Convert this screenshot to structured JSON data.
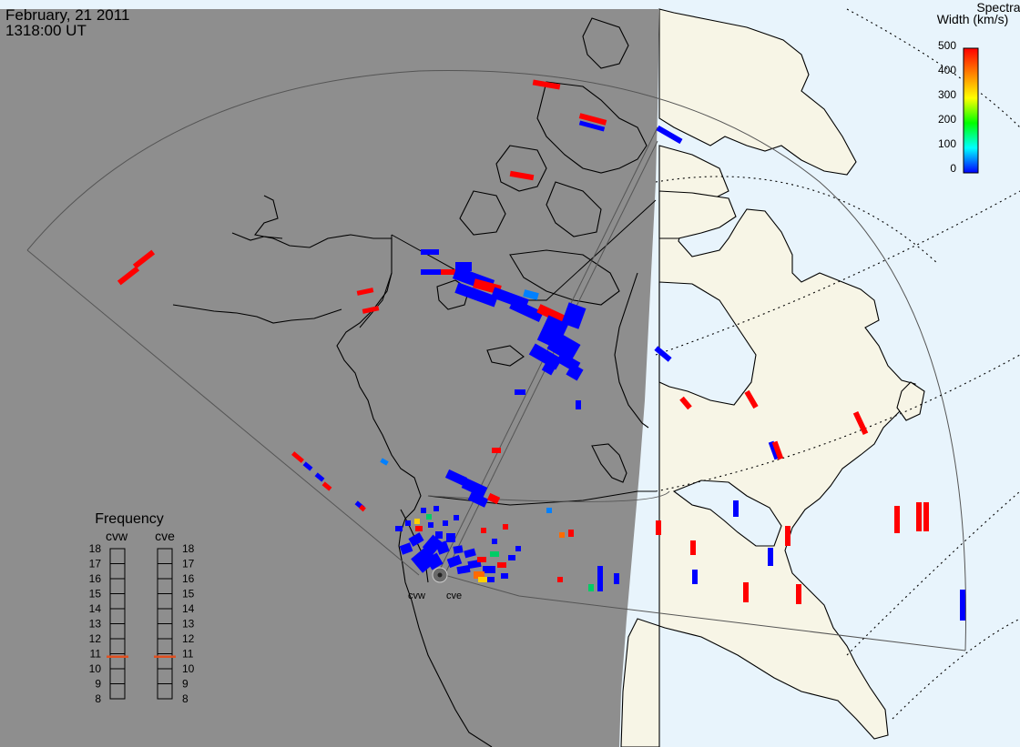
{
  "title": {
    "date": "February, 21 2011",
    "time": "1318:00 UT"
  },
  "colorbar": {
    "title_line1": "Spectral",
    "title_line2": "Width (km/s)",
    "ticks": [
      "500",
      "400",
      "300",
      "200",
      "100",
      "0"
    ],
    "stops": [
      "#ff0000",
      "#ff8000",
      "#ffff00",
      "#00ff00",
      "#00ffff",
      "#0000ff"
    ]
  },
  "frequency": {
    "title": "Frequency",
    "left_label": "cvw",
    "right_label": "cve",
    "ticks": [
      "18",
      "17",
      "16",
      "15",
      "14",
      "13",
      "12",
      "11",
      "10",
      "9",
      "8"
    ],
    "cvw_mhz": 10.8,
    "cve_mhz": 10.8,
    "marker_color": "#e05020"
  },
  "radars": {
    "cvw": "cvw",
    "cve": "cve"
  },
  "colors": {
    "night": "#8e8e8e",
    "day_land": "#f7f5e6",
    "day_ocean": "#e8f4fc",
    "high_width": "#ff0000",
    "low_width": "#0000ff"
  }
}
